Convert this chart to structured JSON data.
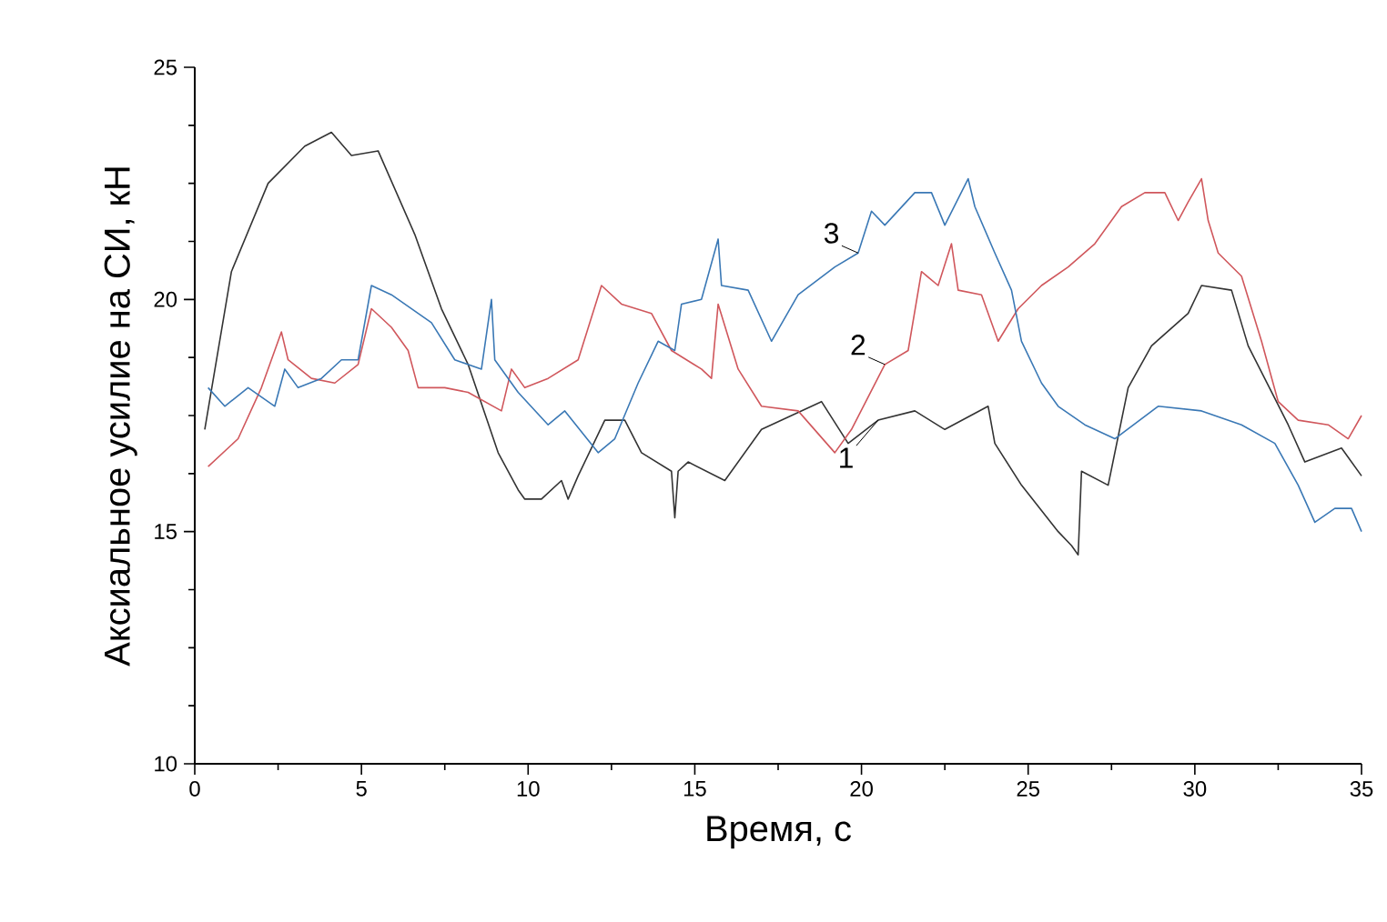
{
  "chart_data": {
    "type": "line",
    "xlabel": "Время, с",
    "ylabel": "Аксиальное усилие на СИ, кН",
    "xlim": [
      0,
      35
    ],
    "ylim": [
      10,
      25
    ],
    "xticks": [
      0,
      5,
      10,
      15,
      20,
      25,
      30,
      35
    ],
    "yticks": [
      10,
      15,
      20,
      25
    ],
    "grid": false,
    "marker": "none",
    "line_style": "solid",
    "series": [
      {
        "color": "#333333",
        "x": [
          0.3,
          1.1,
          2.2,
          3.3,
          4.1,
          4.7,
          5.5,
          6.6,
          7.4,
          8.2,
          9.1,
          9.7,
          9.9,
          10.4,
          11.0,
          11.2,
          11.5,
          12.3,
          12.9,
          13.4,
          14.3,
          14.4,
          14.5,
          14.8,
          15.9,
          17.0,
          18.8,
          19.6,
          20.5,
          21.6,
          22.5,
          23.8,
          24.0,
          24.8,
          25.9,
          26.3,
          26.5,
          26.6,
          27.4,
          28.0,
          28.7,
          29.8,
          30.2,
          31.1,
          31.6,
          32.8,
          33.3,
          34.4,
          35.0
        ],
        "values": [
          17.2,
          20.6,
          22.5,
          23.3,
          23.6,
          23.1,
          23.2,
          21.4,
          19.8,
          18.6,
          16.7,
          15.9,
          15.7,
          15.7,
          16.1,
          15.7,
          16.2,
          17.4,
          17.4,
          16.7,
          16.3,
          15.3,
          16.3,
          16.5,
          16.1,
          17.2,
          17.8,
          16.9,
          17.4,
          17.6,
          17.2,
          17.7,
          16.9,
          16.0,
          15.0,
          14.7,
          14.5,
          16.3,
          16.0,
          18.1,
          19.0,
          19.7,
          20.3,
          20.2,
          19.0,
          17.3,
          16.5,
          16.8,
          16.2
        ]
      },
      {
        "color": "#d0575c",
        "x": [
          0.4,
          1.3,
          2.0,
          2.6,
          2.8,
          3.5,
          4.2,
          4.9,
          5.3,
          5.9,
          6.4,
          6.7,
          7.5,
          8.2,
          9.2,
          9.5,
          9.9,
          10.6,
          11.5,
          12.2,
          12.8,
          13.7,
          14.3,
          15.2,
          15.5,
          15.7,
          16.3,
          17.0,
          18.1,
          19.2,
          19.7,
          20.7,
          21.4,
          21.8,
          22.3,
          22.7,
          22.9,
          23.6,
          24.1,
          24.7,
          25.4,
          26.2,
          27.0,
          27.8,
          28.5,
          29.1,
          29.5,
          29.8,
          30.2,
          30.4,
          30.7,
          31.4,
          32.0,
          32.5,
          33.1,
          34.0,
          34.6,
          35.0
        ],
        "values": [
          16.4,
          17.0,
          18.1,
          19.3,
          18.7,
          18.3,
          18.2,
          18.6,
          19.8,
          19.4,
          18.9,
          18.1,
          18.1,
          18.0,
          17.6,
          18.5,
          18.1,
          18.3,
          18.7,
          20.3,
          19.9,
          19.7,
          18.9,
          18.5,
          18.3,
          19.9,
          18.5,
          17.7,
          17.6,
          16.7,
          17.2,
          18.6,
          18.9,
          20.6,
          20.3,
          21.2,
          20.2,
          20.1,
          19.1,
          19.8,
          20.3,
          20.7,
          21.2,
          22.0,
          22.3,
          22.3,
          21.7,
          22.1,
          22.6,
          21.7,
          21.0,
          20.5,
          19.1,
          17.8,
          17.4,
          17.3,
          17.0,
          17.5
        ]
      },
      {
        "color": "#3a78b5",
        "x": [
          0.4,
          0.9,
          1.6,
          2.4,
          2.7,
          3.1,
          3.8,
          4.4,
          4.9,
          5.3,
          5.9,
          6.7,
          7.1,
          7.8,
          8.6,
          8.9,
          9.0,
          9.7,
          10.6,
          11.1,
          12.1,
          12.6,
          13.3,
          13.9,
          14.4,
          14.6,
          15.2,
          15.7,
          15.8,
          16.6,
          17.3,
          18.1,
          19.2,
          19.9,
          20.3,
          20.7,
          21.6,
          22.1,
          22.5,
          23.2,
          23.4,
          24.0,
          24.5,
          24.8,
          25.4,
          25.9,
          26.7,
          27.6,
          28.9,
          30.2,
          31.4,
          32.4,
          33.1,
          33.6,
          34.2,
          34.7,
          35.0
        ],
        "values": [
          18.1,
          17.7,
          18.1,
          17.7,
          18.5,
          18.1,
          18.3,
          18.7,
          18.7,
          20.3,
          20.1,
          19.7,
          19.5,
          18.7,
          18.5,
          20.0,
          18.7,
          18.0,
          17.3,
          17.6,
          16.7,
          17.0,
          18.2,
          19.1,
          18.9,
          19.9,
          20.0,
          21.3,
          20.3,
          20.2,
          19.1,
          20.1,
          20.7,
          21.0,
          21.9,
          21.6,
          22.3,
          22.3,
          21.6,
          22.6,
          22.0,
          21.0,
          20.2,
          19.1,
          18.2,
          17.7,
          17.3,
          17.0,
          17.7,
          17.6,
          17.3,
          16.9,
          16.0,
          15.2,
          15.5,
          15.5,
          15.0
        ]
      }
    ],
    "annotations": [
      {
        "text": "1",
        "x": 20.5,
        "y": 17.4
      },
      {
        "text": "2",
        "x": 20.7,
        "y": 18.6
      },
      {
        "text": "3",
        "x": 19.9,
        "y": 21.0
      }
    ]
  }
}
